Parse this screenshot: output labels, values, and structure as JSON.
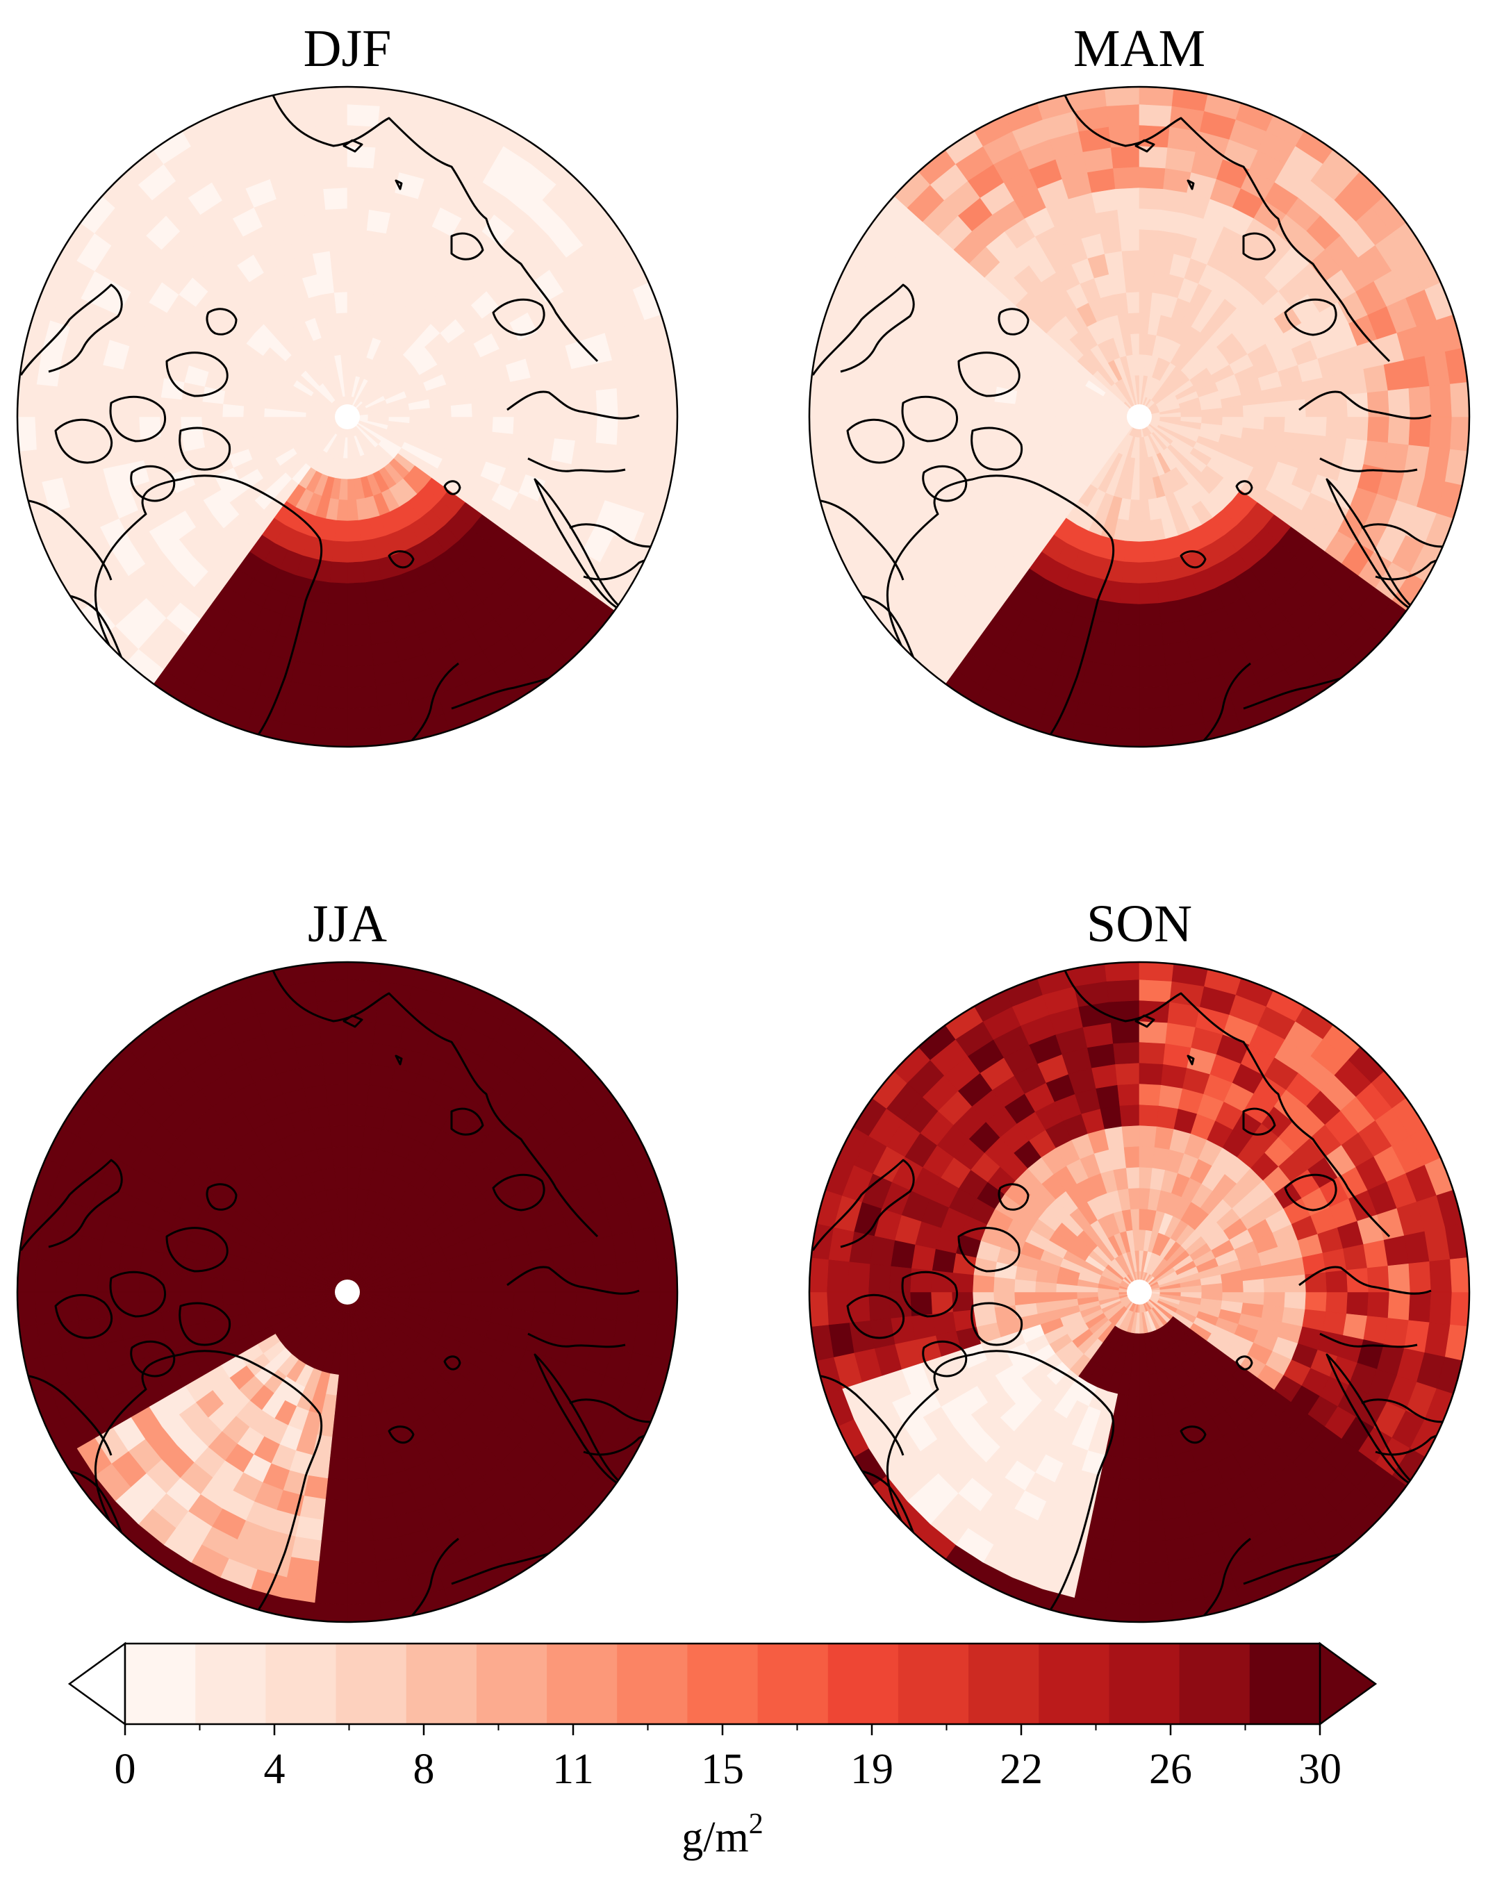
{
  "figure": {
    "panels": [
      {
        "id": "djf",
        "title": "DJF"
      },
      {
        "id": "mam",
        "title": "MAM"
      },
      {
        "id": "jja",
        "title": "JJA"
      },
      {
        "id": "son",
        "title": "SON"
      }
    ]
  },
  "colorbar": {
    "min": 0,
    "max": 30,
    "extend": "both",
    "tick_labels": [
      "0",
      "4",
      "8",
      "11",
      "15",
      "19",
      "22",
      "26",
      "30"
    ],
    "unit_base": "g/m",
    "unit_exp": "2",
    "colors": [
      "#fff5f0",
      "#fee9df",
      "#fedfd0",
      "#fdd1be",
      "#fcbea5",
      "#fcab8f",
      "#fc9879",
      "#fb8464",
      "#fa7050",
      "#f65d42",
      "#ee4634",
      "#e0392b",
      "#cd2a22",
      "#bb1b1b",
      "#a81217",
      "#8e0b13",
      "#67000d"
    ],
    "under_color": "#ffffff",
    "over_color": "#67000d"
  }
}
